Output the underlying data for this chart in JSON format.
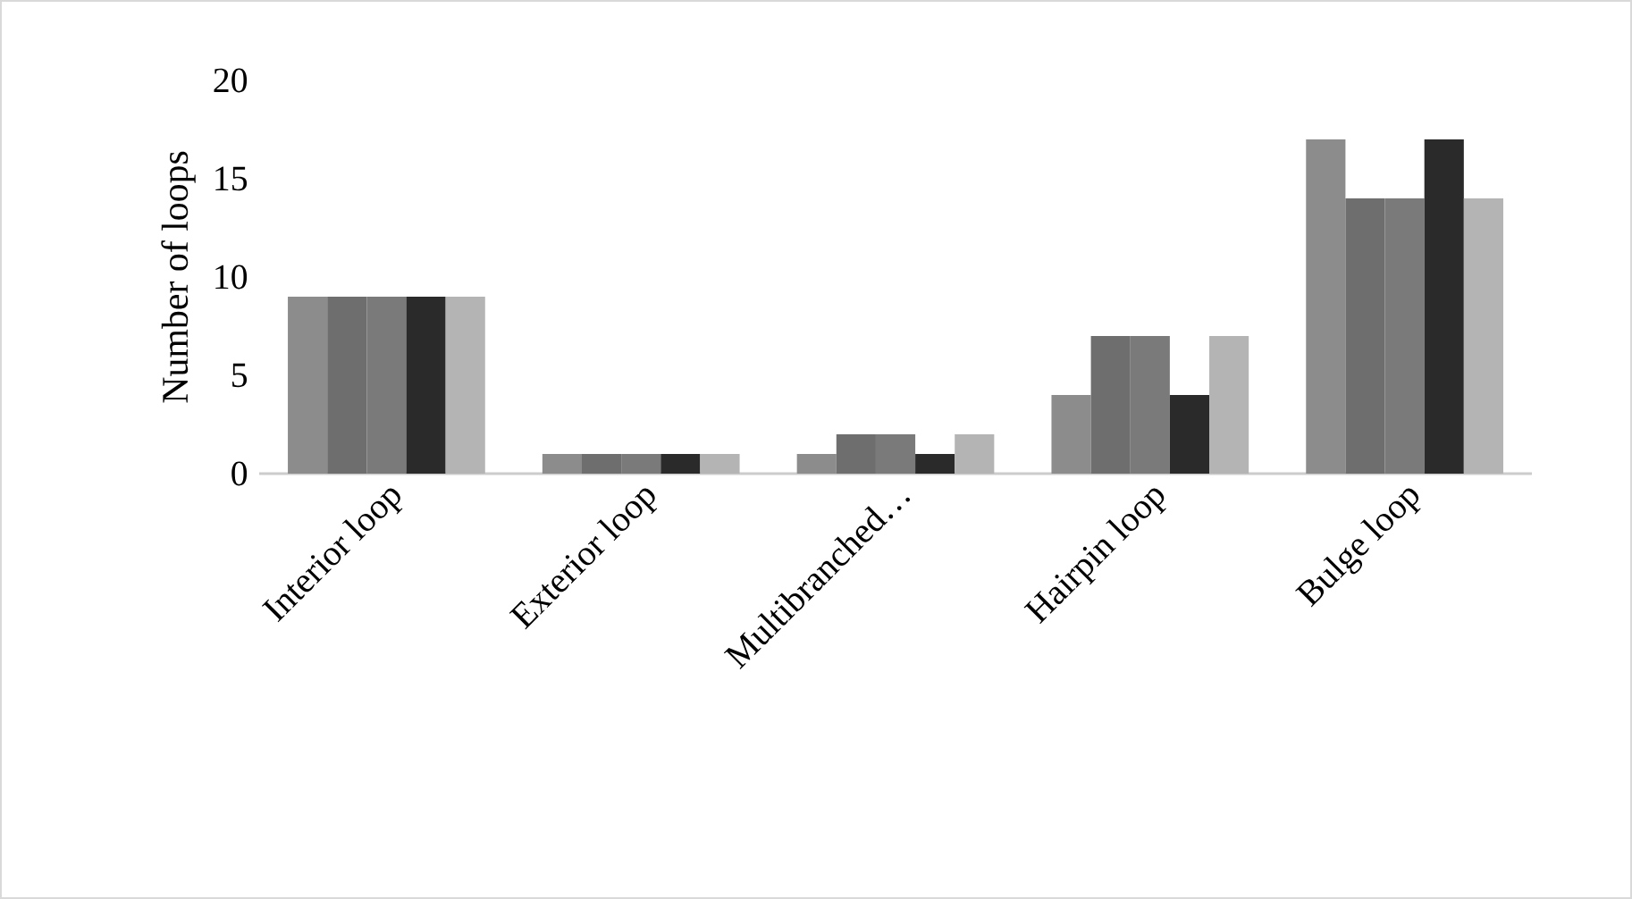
{
  "chart_data": {
    "type": "bar",
    "ylabel": "Number of loops",
    "categories": [
      "Interior loop",
      "Exterior loop",
      "Multibranched…",
      "Hairpin loop",
      "Bulge loop"
    ],
    "series": [
      {
        "color": "#8c8c8c",
        "values": [
          9,
          1,
          1,
          4,
          17
        ]
      },
      {
        "color": "#6e6e6e",
        "values": [
          9,
          1,
          2,
          7,
          14
        ]
      },
      {
        "color": "#7a7a7a",
        "values": [
          9,
          1,
          2,
          7,
          14
        ]
      },
      {
        "color": "#2a2a2a",
        "values": [
          9,
          1,
          1,
          4,
          17
        ]
      },
      {
        "color": "#b4b4b4",
        "values": [
          9,
          1,
          2,
          7,
          14
        ]
      }
    ],
    "ylim": [
      0,
      20
    ],
    "yticks": [
      0,
      5,
      10,
      15,
      20
    ]
  }
}
